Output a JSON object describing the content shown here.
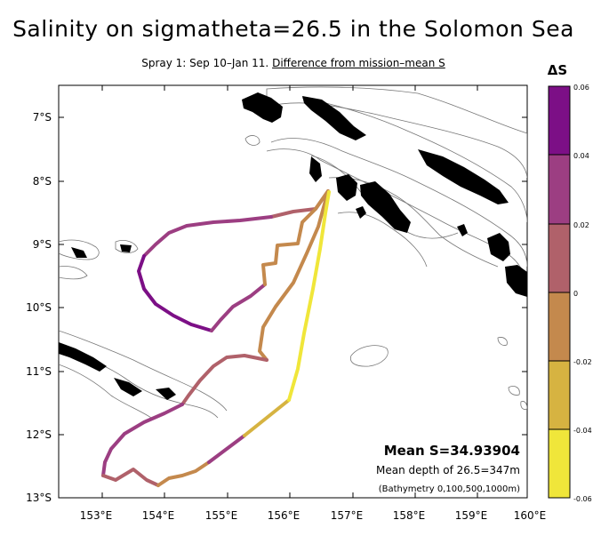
{
  "title": "Salinity on sigmatheta=26.5 in the Solomon Sea",
  "subtitle_prefix": "Spray 1: Sep 10–Jan 11.",
  "subtitle_link": "Difference from mission–mean S",
  "map": {
    "lon_range": [
      152.5,
      160.0
    ],
    "lat_range": [
      -13.0,
      -6.5
    ],
    "x_ticks": [
      "153°E",
      "154°E",
      "155°E",
      "156°E",
      "157°E",
      "158°E",
      "159°E",
      "160°E"
    ],
    "y_ticks": [
      "7°S",
      "8°S",
      "9°S",
      "10°S",
      "11°S",
      "12°S",
      "13°S"
    ],
    "annotations": {
      "mean_s": "Mean S=34.93904",
      "mean_depth": "Mean depth of 26.5=347m",
      "bathymetry": "(Bathymetry 0,100,500,1000m)"
    }
  },
  "colorbar": {
    "title": "ΔS",
    "tick_labels": [
      "0.06",
      "0.04",
      "0.02",
      "0",
      "-0.02",
      "-0.04",
      "-0.06"
    ],
    "colors": [
      "#7c0f86",
      "#9c3e82",
      "#b0616a",
      "#c4894d",
      "#d6b341",
      "#f0e63a"
    ]
  }
}
